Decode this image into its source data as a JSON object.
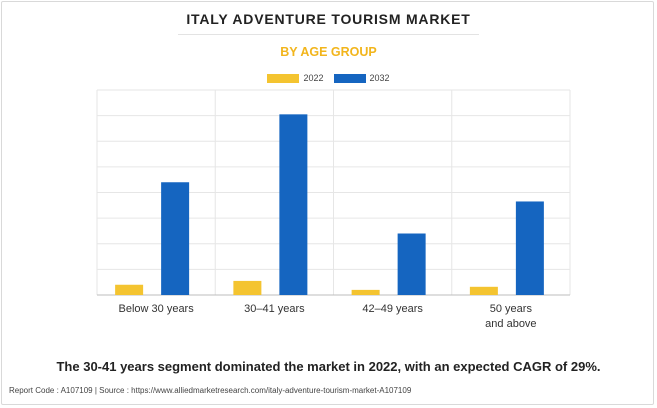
{
  "title": "ITALY ADVENTURE TOURISM MARKET",
  "subtitle": "BY AGE GROUP",
  "caption": "The 30-41 years segment dominated the market in 2022, with an expected CAGR of 29%.",
  "footer": "Report Code : A107109  |  Source : https://www.alliedmarketresearch.com/italy-adventure-tourism-market-A107109",
  "colors": {
    "s2022": "#f4c430",
    "s2032": "#1565c0",
    "grid": "#e6e6e6",
    "axis": "#bdbdbd"
  },
  "chart_data": {
    "type": "bar",
    "categories": [
      [
        "Below 30 years"
      ],
      [
        "30–41 years"
      ],
      [
        "42–49 years"
      ],
      [
        "50 years",
        "and above"
      ]
    ],
    "series": [
      {
        "name": "2022",
        "values": [
          0.4,
          0.55,
          0.2,
          0.32
        ]
      },
      {
        "name": "2032",
        "values": [
          4.4,
          7.05,
          2.4,
          3.65
        ]
      }
    ],
    "ylim": [
      0,
      8
    ],
    "grid": true,
    "legend": "top-center",
    "xlabel": "",
    "ylabel": ""
  }
}
